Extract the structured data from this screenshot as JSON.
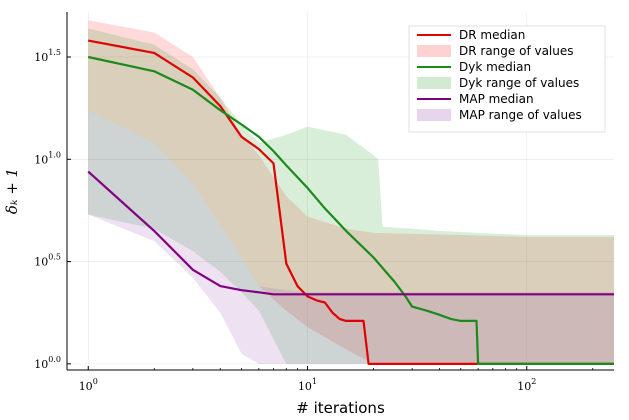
{
  "chart_data": {
    "type": "line",
    "title": "",
    "xlabel": "# iterations",
    "ylabel": "δ_k + 1",
    "xscale": "log",
    "yscale": "log",
    "xlim": [
      0.8,
      250
    ],
    "ylim_log10": [
      -0.03,
      1.72
    ],
    "x_ticks": [
      {
        "value": 1,
        "base": "10",
        "exp": "0"
      },
      {
        "value": 10,
        "base": "10",
        "exp": "1"
      },
      {
        "value": 100,
        "base": "10",
        "exp": "2"
      }
    ],
    "y_ticks": [
      {
        "log10": 0.0,
        "base": "10",
        "exp": "0.0"
      },
      {
        "log10": 0.5,
        "base": "10",
        "exp": "0.5"
      },
      {
        "log10": 1.0,
        "base": "10",
        "exp": "1.0"
      },
      {
        "log10": 1.5,
        "base": "10",
        "exp": "1.5"
      }
    ],
    "grid": true,
    "legend_position": "top-right",
    "series": [
      {
        "name": "DR range of values",
        "kind": "band",
        "color": "#ff6b6b",
        "opacity": 0.25,
        "x": [
          1,
          2,
          3,
          4,
          5,
          6,
          8,
          10,
          15,
          20,
          50,
          100,
          250
        ],
        "upper_log10": [
          1.68,
          1.62,
          1.5,
          1.3,
          1.12,
          1.02,
          0.82,
          0.72,
          0.66,
          0.64,
          0.63,
          0.62,
          0.62
        ],
        "lower_log10": [
          1.24,
          1.08,
          0.88,
          0.68,
          0.52,
          0.38,
          0.26,
          0.18,
          0.07,
          0.0,
          0.0,
          0.0,
          0.0
        ]
      },
      {
        "name": "Dyk range of values",
        "kind": "band",
        "color": "#2ca02c",
        "opacity": 0.18,
        "x": [
          1,
          2,
          3,
          4,
          5,
          6,
          8,
          10,
          15,
          20,
          21,
          22,
          30,
          40,
          60,
          100,
          250
        ],
        "upper_log10": [
          1.64,
          1.56,
          1.44,
          1.3,
          1.17,
          1.08,
          1.12,
          1.16,
          1.12,
          1.02,
          1.0,
          0.67,
          0.66,
          0.65,
          0.64,
          0.63,
          0.63
        ],
        "lower_log10": [
          0.73,
          0.66,
          0.55,
          0.45,
          0.35,
          0.26,
          0.0,
          0.0,
          0.0,
          0.0,
          0.0,
          0.0,
          0.0,
          0.0,
          0.0,
          0.0,
          0.0
        ]
      },
      {
        "name": "MAP range of values",
        "kind": "band",
        "color": "#9b59b6",
        "opacity": 0.18,
        "x": [
          1,
          2,
          3,
          4,
          5,
          6,
          8,
          10,
          15,
          20,
          50,
          100,
          250
        ],
        "upper_log10": [
          1.24,
          1.08,
          0.88,
          0.68,
          0.52,
          0.38,
          0.36,
          0.35,
          0.35,
          0.35,
          0.35,
          0.35,
          0.35
        ],
        "lower_log10": [
          0.73,
          0.6,
          0.42,
          0.25,
          0.05,
          0.0,
          0.0,
          0.0,
          0.0,
          0.0,
          0.0,
          0.0,
          0.0
        ]
      },
      {
        "name": "DR median",
        "kind": "line",
        "color": "#e00000",
        "x": [
          1,
          2,
          3,
          4,
          5,
          6,
          7,
          8,
          9,
          10,
          11,
          12,
          13,
          14,
          15,
          17,
          18,
          19,
          20,
          250
        ],
        "y_log10": [
          1.58,
          1.52,
          1.4,
          1.26,
          1.11,
          1.05,
          0.98,
          0.49,
          0.38,
          0.33,
          0.31,
          0.3,
          0.25,
          0.22,
          0.21,
          0.21,
          0.21,
          0.0,
          0.0,
          0.0
        ]
      },
      {
        "name": "Dyk median",
        "kind": "line",
        "color": "#1a8a1a",
        "x": [
          1,
          2,
          3,
          4,
          5,
          6,
          7,
          8,
          10,
          12,
          15,
          20,
          25,
          28,
          30,
          35,
          40,
          45,
          50,
          59,
          60,
          250
        ],
        "y_log10": [
          1.5,
          1.43,
          1.34,
          1.24,
          1.17,
          1.11,
          1.04,
          0.97,
          0.86,
          0.76,
          0.65,
          0.52,
          0.4,
          0.33,
          0.28,
          0.26,
          0.24,
          0.22,
          0.21,
          0.21,
          0.0,
          0.0
        ]
      },
      {
        "name": "MAP median",
        "kind": "line",
        "color": "#800080",
        "x": [
          1,
          2,
          3,
          4,
          5,
          6,
          7,
          10,
          20,
          50,
          100,
          250
        ],
        "y_log10": [
          0.94,
          0.65,
          0.46,
          0.38,
          0.36,
          0.35,
          0.34,
          0.34,
          0.34,
          0.34,
          0.34,
          0.34
        ]
      }
    ],
    "legend": [
      {
        "label": "DR median",
        "kind": "line",
        "color": "#e00000"
      },
      {
        "label": "DR range of values",
        "kind": "band",
        "color": "#ff6b6b",
        "opacity": 0.3
      },
      {
        "label": "Dyk median",
        "kind": "line",
        "color": "#1a8a1a"
      },
      {
        "label": "Dyk range of values",
        "kind": "band",
        "color": "#2ca02c",
        "opacity": 0.22
      },
      {
        "label": "MAP median",
        "kind": "line",
        "color": "#800080"
      },
      {
        "label": "MAP range of values",
        "kind": "band",
        "color": "#9b59b6",
        "opacity": 0.25
      }
    ]
  }
}
